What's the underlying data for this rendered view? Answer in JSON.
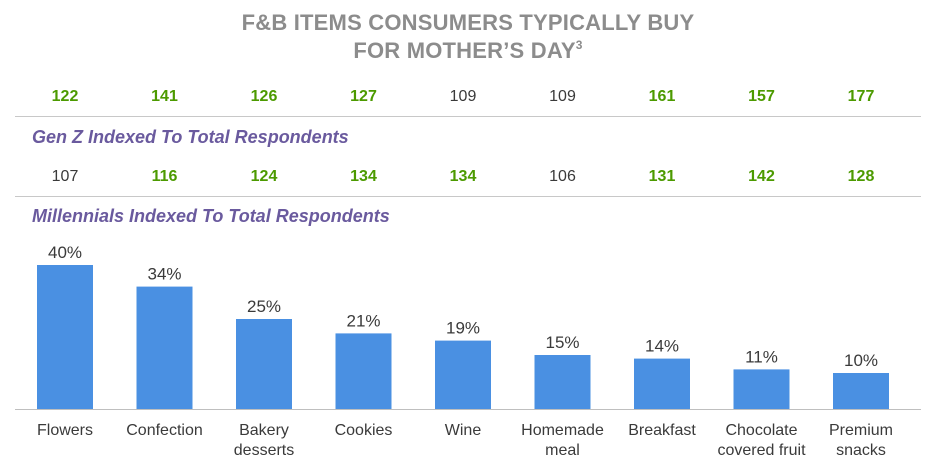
{
  "header": {
    "title_line1": "F&B ITEMS CONSUMERS TYPICALLY BUY",
    "title_line2": "FOR MOTHER’S DAY",
    "title_sup": "3"
  },
  "genz": {
    "label": "Gen Z Indexed To Total Respondents",
    "values": [
      {
        "value": "122",
        "highlight": true
      },
      {
        "value": "141",
        "highlight": true
      },
      {
        "value": "126",
        "highlight": true
      },
      {
        "value": "127",
        "highlight": true
      },
      {
        "value": "109",
        "highlight": false
      },
      {
        "value": "109",
        "highlight": false
      },
      {
        "value": "161",
        "highlight": true
      },
      {
        "value": "157",
        "highlight": true
      },
      {
        "value": "177",
        "highlight": true
      }
    ]
  },
  "millennials": {
    "label": "Millennials Indexed To Total Respondents",
    "values": [
      {
        "value": "107",
        "highlight": false
      },
      {
        "value": "116",
        "highlight": true
      },
      {
        "value": "124",
        "highlight": true
      },
      {
        "value": "134",
        "highlight": true
      },
      {
        "value": "134",
        "highlight": true
      },
      {
        "value": "106",
        "highlight": false
      },
      {
        "value": "131",
        "highlight": true
      },
      {
        "value": "142",
        "highlight": true
      },
      {
        "value": "128",
        "highlight": true
      }
    ]
  },
  "colors": {
    "bar": "#4a90e2",
    "highlight_green": "#4c9a00",
    "label_purple": "#6a5a9e",
    "title_gray": "#8c8c8c"
  },
  "chart_data": {
    "type": "bar",
    "title": "F&B ITEMS CONSUMERS TYPICALLY BUY FOR MOTHER’S DAY",
    "categories": [
      [
        "Flowers"
      ],
      [
        "Confection"
      ],
      [
        "Bakery",
        "desserts"
      ],
      [
        "Cookies"
      ],
      [
        "Wine"
      ],
      [
        "Homemade",
        "meal"
      ],
      [
        "Breakfast"
      ],
      [
        "Chocolate",
        "covered fruit"
      ],
      [
        "Premium",
        "snacks"
      ]
    ],
    "values": [
      40,
      34,
      25,
      21,
      19,
      15,
      14,
      11,
      10
    ],
    "value_labels": [
      "40%",
      "34%",
      "25%",
      "21%",
      "19%",
      "15%",
      "14%",
      "11%",
      "10%"
    ],
    "value_format": "percent",
    "xlabel": "",
    "ylabel": "",
    "ylim": [
      0,
      40
    ],
    "grid": false
  }
}
